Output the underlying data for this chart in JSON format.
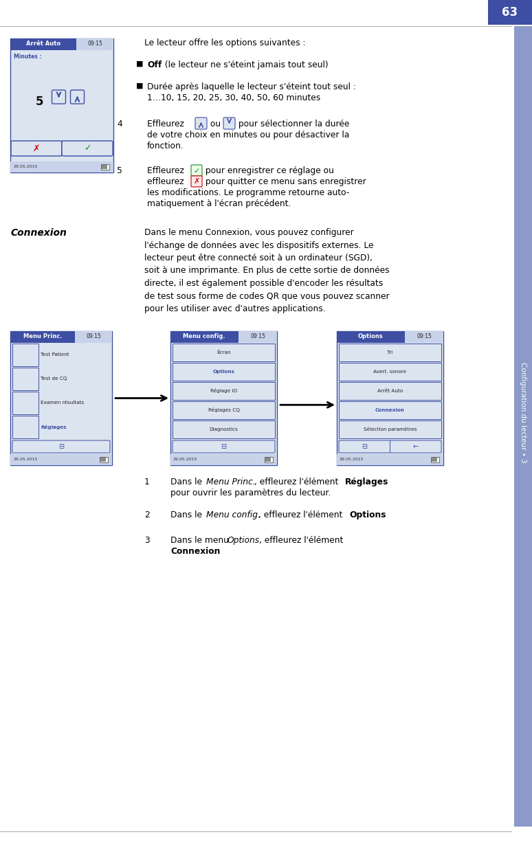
{
  "page_number": "63",
  "blue_dark": "#3d4ea3",
  "blue_header_light": "#c8d2e8",
  "blue_sidebar": "#8b9ac8",
  "background": "#ffffff",
  "red_color": "#cc0000",
  "green_color": "#228822",
  "screen_bg": "#dce4f0",
  "arrêt_screen": {
    "title": "Arrêt Auto",
    "time": "09:15",
    "date": "29.05.2015"
  },
  "menu_princ_screen": {
    "title": "Menu Princ.",
    "time": "09:15",
    "items": [
      "Test Patient",
      "Test de CQ",
      "Examen résultats",
      "Réglages"
    ],
    "highlighted": "Réglages",
    "date": "29.05.2015"
  },
  "menu_config_screen": {
    "title": "Menu config.",
    "time": "09:15",
    "items": [
      "Écran",
      "Options",
      "Réglage ID",
      "Réglages CQ",
      "Diagnostics"
    ],
    "highlighted": "Options",
    "date": "29.05.2015"
  },
  "options_screen": {
    "title": "Options",
    "time": "09:15",
    "items": [
      "Tri",
      "Avert. sonore",
      "Arrêt Auto",
      "Connexion",
      "Sélection paramètres"
    ],
    "highlighted": "Connexion",
    "date": "29.05.2015"
  },
  "sidebar_text": "Configuration du lecteur • 3"
}
